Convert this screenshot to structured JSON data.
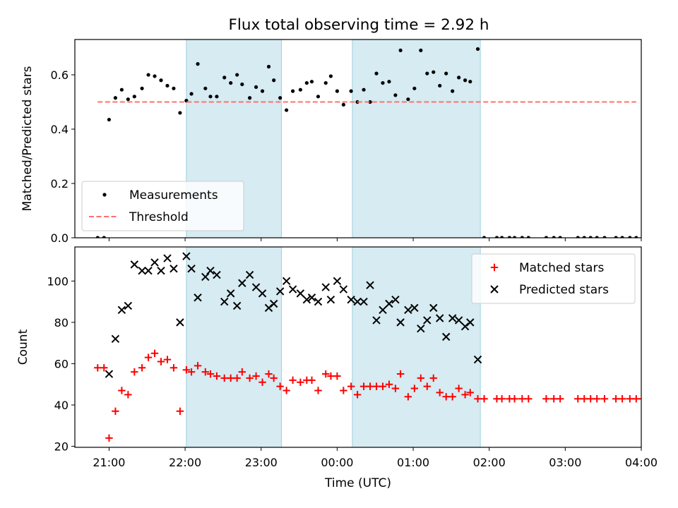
{
  "figure_title": "Flux total observing time = 2.92 h",
  "chart_data": [
    {
      "type": "scatter",
      "ylabel": "Matched/Predicted stars",
      "xlim": [
        "20:33",
        "04:00"
      ],
      "ylim": [
        0,
        0.73
      ],
      "yticks": [
        0.0,
        0.2,
        0.4,
        0.6
      ],
      "ytick_labels": [
        "0.0",
        "0.2",
        "0.4",
        "0.6"
      ],
      "shaded_intervals": [
        [
          "22:01",
          "23:16"
        ],
        [
          "00:12",
          "01:53"
        ]
      ],
      "legend_location": "lower-left",
      "series": [
        {
          "name": "Measurements",
          "marker": "dot",
          "color": "#000000",
          "x": [
            "20:51",
            "20:56",
            "21:00",
            "21:05",
            "21:10",
            "21:15",
            "21:20",
            "21:26",
            "21:31",
            "21:36",
            "21:41",
            "21:46",
            "21:51",
            "21:56",
            "22:01",
            "22:05",
            "22:10",
            "22:16",
            "22:20",
            "22:25",
            "22:31",
            "22:36",
            "22:41",
            "22:45",
            "22:51",
            "22:56",
            "23:01",
            "23:06",
            "23:10",
            "23:15",
            "23:20",
            "23:25",
            "23:31",
            "23:36",
            "23:40",
            "23:45",
            "23:51",
            "23:55",
            "00:00",
            "00:05",
            "00:11",
            "00:16",
            "00:21",
            "00:26",
            "00:31",
            "00:36",
            "00:41",
            "00:46",
            "00:50",
            "00:56",
            "01:01",
            "01:06",
            "01:11",
            "01:16",
            "01:21",
            "01:26",
            "01:31",
            "01:36",
            "01:41",
            "01:45",
            "01:51",
            "01:56",
            "02:06",
            "02:10",
            "02:16",
            "02:20",
            "02:26",
            "02:31",
            "02:45",
            "02:51",
            "02:56",
            "03:10",
            "03:15",
            "03:20",
            "03:25",
            "03:31",
            "03:40",
            "03:45",
            "03:51",
            "03:56",
            "04:01"
          ],
          "y": [
            0.0,
            0.0,
            0.435,
            0.515,
            0.545,
            0.51,
            0.52,
            0.55,
            0.6,
            0.595,
            0.58,
            0.56,
            0.55,
            0.46,
            0.505,
            0.53,
            0.64,
            0.55,
            0.52,
            0.52,
            0.59,
            0.57,
            0.6,
            0.565,
            0.515,
            0.555,
            0.54,
            0.63,
            0.58,
            0.515,
            0.47,
            0.54,
            0.545,
            0.57,
            0.575,
            0.52,
            0.57,
            0.595,
            0.54,
            0.49,
            0.54,
            0.5,
            0.545,
            0.5,
            0.605,
            0.57,
            0.575,
            0.525,
            0.69,
            0.51,
            0.55,
            0.69,
            0.605,
            0.61,
            0.56,
            0.605,
            0.54,
            0.59,
            0.58,
            0.575,
            0.695,
            0.0,
            0.0,
            0.0,
            0.0,
            0.0,
            0.0,
            0.0,
            0.0,
            0.0,
            0.0,
            0.0,
            0.0,
            0.0,
            0.0,
            0.0,
            0.0,
            0.0,
            0.0,
            0.0,
            0.0
          ]
        },
        {
          "name": "Threshold",
          "style": "dashed",
          "color": "#ff7070",
          "x": [
            "20:51",
            "03:56"
          ],
          "y": [
            0.5,
            0.5
          ]
        }
      ]
    },
    {
      "type": "scatter",
      "xlabel": "Time (UTC)",
      "ylabel": "Count",
      "xlim": [
        "20:33",
        "04:00"
      ],
      "ylim": [
        19.5,
        116.5
      ],
      "xticks": [
        "21:00",
        "22:00",
        "23:00",
        "00:00",
        "01:00",
        "02:00",
        "03:00",
        "04:00"
      ],
      "yticks": [
        20,
        40,
        60,
        80,
        100
      ],
      "ytick_labels": [
        "20",
        "40",
        "60",
        "80",
        "100"
      ],
      "shaded_intervals": [
        [
          "22:01",
          "23:16"
        ],
        [
          "00:12",
          "01:53"
        ]
      ],
      "legend_location": "upper-right",
      "series": [
        {
          "name": "Matched stars",
          "marker": "plus",
          "color": "#ff0000",
          "x": [
            "20:51",
            "20:56",
            "21:00",
            "21:05",
            "21:10",
            "21:15",
            "21:20",
            "21:26",
            "21:31",
            "21:36",
            "21:41",
            "21:46",
            "21:51",
            "21:56",
            "22:01",
            "22:05",
            "22:10",
            "22:16",
            "22:20",
            "22:25",
            "22:31",
            "22:36",
            "22:41",
            "22:45",
            "22:51",
            "22:56",
            "23:01",
            "23:06",
            "23:10",
            "23:15",
            "23:20",
            "23:25",
            "23:31",
            "23:36",
            "23:40",
            "23:45",
            "23:51",
            "23:55",
            "00:00",
            "00:05",
            "00:11",
            "00:16",
            "00:21",
            "00:26",
            "00:31",
            "00:36",
            "00:41",
            "00:46",
            "00:50",
            "00:56",
            "01:01",
            "01:06",
            "01:11",
            "01:16",
            "01:21",
            "01:26",
            "01:31",
            "01:36",
            "01:41",
            "01:45",
            "01:51",
            "01:56",
            "02:06",
            "02:10",
            "02:16",
            "02:20",
            "02:26",
            "02:31",
            "02:45",
            "02:51",
            "02:56",
            "03:10",
            "03:15",
            "03:20",
            "03:25",
            "03:31",
            "03:40",
            "03:45",
            "03:51",
            "03:56",
            "04:01"
          ],
          "y": [
            58,
            58,
            24,
            37,
            47,
            45,
            56,
            58,
            63,
            65,
            61,
            62,
            58,
            37,
            57,
            56,
            59,
            56,
            55,
            54,
            53,
            53,
            53,
            56,
            53,
            54,
            51,
            55,
            53,
            49,
            47,
            52,
            51,
            52,
            52,
            47,
            55,
            54,
            54,
            47,
            49,
            45,
            49,
            49,
            49,
            49,
            50,
            48,
            55,
            44,
            48,
            53,
            49,
            53,
            46,
            44,
            44,
            48,
            45,
            46,
            43,
            43,
            43,
            43,
            43,
            43,
            43,
            43,
            43,
            43,
            43,
            43,
            43,
            43,
            43,
            43,
            43,
            43,
            43,
            43,
            43
          ]
        },
        {
          "name": "Predicted stars",
          "marker": "x",
          "color": "#000000",
          "x": [
            "20:51",
            "20:56",
            "21:00",
            "21:05",
            "21:10",
            "21:15",
            "21:20",
            "21:26",
            "21:31",
            "21:36",
            "21:41",
            "21:46",
            "21:51",
            "21:56",
            "22:01",
            "22:05",
            "22:10",
            "22:16",
            "22:20",
            "22:25",
            "22:31",
            "22:36",
            "22:41",
            "22:45",
            "22:51",
            "22:56",
            "23:01",
            "23:06",
            "23:10",
            "23:15",
            "23:20",
            "23:25",
            "23:31",
            "23:36",
            "23:40",
            "23:45",
            "23:51",
            "23:55",
            "00:00",
            "00:05",
            "00:11",
            "00:16",
            "00:21",
            "00:26",
            "00:31",
            "00:36",
            "00:41",
            "00:46",
            "00:50",
            "00:56",
            "01:01",
            "01:06",
            "01:11",
            "01:16",
            "01:21",
            "01:26",
            "01:31",
            "01:36",
            "01:41",
            "01:45",
            "01:51"
          ],
          "y": [
            null,
            null,
            55,
            72,
            86,
            88,
            108,
            105,
            105,
            109,
            105,
            111,
            106,
            80,
            112,
            106,
            92,
            102,
            105,
            103,
            90,
            94,
            88,
            99,
            103,
            97,
            94,
            87,
            89,
            95,
            100,
            96,
            94,
            91,
            92,
            90,
            97,
            91,
            100,
            96,
            91,
            90,
            90,
            98,
            81,
            86,
            89,
            91,
            80,
            86,
            87,
            77,
            81,
            87,
            82,
            73,
            82,
            81,
            78,
            80,
            62
          ]
        }
      ]
    }
  ]
}
